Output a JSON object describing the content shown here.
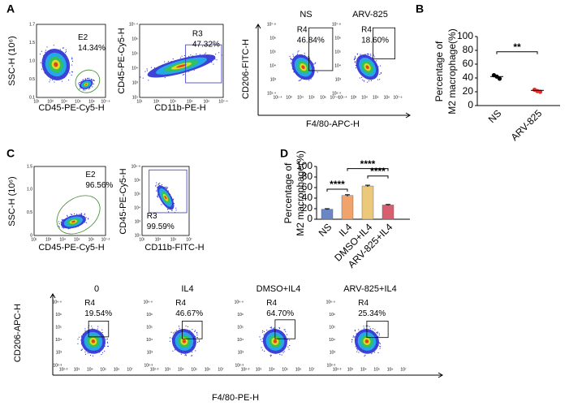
{
  "panel_labels": [
    "A",
    "B",
    "C",
    "D"
  ],
  "flow_plots": [
    {
      "y_label": "SSC-H (10⁶)",
      "x_label": "CD45-PE-Cy5-H",
      "gate_name": "E2",
      "gate_value": "14.34%",
      "y_ticks": [
        "0.1",
        "0.5",
        "1.0",
        "1.5",
        "1.7"
      ],
      "x_ticks": [
        "10¹",
        "10³",
        "10⁴",
        "10⁵",
        "10⁶",
        "10⁷·⁶"
      ]
    },
    {
      "y_label": "CD45-PE-Cy5-H",
      "x_label": "CD11b-PE-H",
      "gate_name": "R3",
      "gate_value": "47.32%",
      "y_ticks": [
        "10¹",
        "10³",
        "10⁴",
        "10⁵",
        "10⁶",
        "10⁷·⁴"
      ],
      "x_ticks": [
        "10¹",
        "10³",
        "10⁴",
        "10⁵",
        "10⁶",
        "10⁷·⁴"
      ]
    },
    {
      "y_label": "SSC-H (10⁶)",
      "x_label": "CD45-PE-Cy5-H",
      "gate_name": "E2",
      "gate_value": "96.56%",
      "y_ticks": [
        "0",
        "0.5",
        "1.0",
        "1.5"
      ],
      "x_ticks": [
        "10¹",
        "10³",
        "10⁴",
        "10⁵",
        "10⁶",
        "10⁷·²"
      ]
    },
    {
      "y_label": "CD45-PE-Cy5-H",
      "x_label": "CD11b-FITC-H",
      "gate_name": "R3",
      "gate_value": "99.59%",
      "y_ticks": [
        "10¹",
        "10³",
        "10⁴",
        "10⁵",
        "10⁶",
        "10⁶·⁸"
      ],
      "x_ticks": [
        "10¹",
        "10³",
        "10⁵",
        "10⁷"
      ]
    }
  ],
  "flow_groups": [
    {
      "y_label": "CD206-FITC-H",
      "x_label": "F4/80-APC-H",
      "plots": [
        {
          "title": "NS",
          "gate_name": "R4",
          "gate_value": "46.84%",
          "y_ticks": [
            "10¹·⁴",
            "10³",
            "10⁴",
            "10⁵",
            "10⁶",
            "10⁷·⁸"
          ],
          "x_ticks": [
            "10¹·⁴",
            "10³",
            "10⁴",
            "10⁵",
            "10⁶",
            "10⁷·⁶"
          ]
        },
        {
          "title": "ARV-825",
          "gate_name": "R4",
          "gate_value": "18.60%",
          "y_ticks": [
            "10¹·⁴",
            "10³",
            "10⁴",
            "10⁵",
            "10⁶",
            "10⁷·⁸"
          ],
          "x_ticks": [
            "10¹·⁴",
            "10³",
            "10⁴",
            "10⁵",
            "10⁶",
            "10⁷·⁶"
          ]
        }
      ]
    },
    {
      "y_label": "CD206-APC-H",
      "x_label": "F4/80-PE-H",
      "plots": [
        {
          "title": "0",
          "gate_name": "R4",
          "gate_value": "19.54%",
          "y_ticks": [
            "10²·³",
            "10³",
            "10⁴",
            "10⁵",
            "10⁶",
            "10⁶·⁹"
          ],
          "x_ticks": [
            "10²·³",
            "10³",
            "10⁴",
            "10⁵",
            "10⁶",
            "10⁷"
          ]
        },
        {
          "title": "IL4",
          "gate_name": "R4",
          "gate_value": "46.67%",
          "y_ticks": [
            "10²·³",
            "10³",
            "10⁴",
            "10⁵",
            "10⁶",
            "10⁶·⁹"
          ],
          "x_ticks": [
            "10²·³",
            "10³",
            "10⁴",
            "10⁵",
            "10⁶",
            "10⁷"
          ]
        },
        {
          "title": "DMSO+IL4",
          "gate_name": "R4",
          "gate_value": "64.70%",
          "y_ticks": [
            "10²·³",
            "10³",
            "10⁴",
            "10⁵",
            "10⁶",
            "10⁶·⁹"
          ],
          "x_ticks": [
            "10²·³",
            "10³",
            "10⁴",
            "10⁵",
            "10⁶",
            "10⁷"
          ]
        },
        {
          "title": "ARV-825+IL4",
          "gate_name": "R4",
          "gate_value": "25.34%",
          "y_ticks": [
            "10²·³",
            "10³",
            "10⁴",
            "10⁵",
            "10⁶",
            "10⁶·⁹"
          ],
          "x_ticks": [
            "10²·³",
            "10³",
            "10⁴",
            "10⁵",
            "10⁶",
            "10⁷"
          ]
        }
      ]
    }
  ],
  "chart_data": [
    {
      "type": "dot",
      "y_label": [
        "Percentage of",
        "M2 macrophage(%)"
      ],
      "categories": [
        "NS",
        "ARV-825"
      ],
      "values": [
        42,
        22
      ],
      "points": [
        [
          44,
          42,
          39
        ],
        [
          23,
          21,
          20
        ]
      ],
      "colors": [
        "#000000",
        "#e03030"
      ],
      "ylim": [
        0,
        100
      ],
      "yticks": [
        0,
        20,
        40,
        60,
        80,
        100
      ],
      "significance": [
        "**"
      ]
    },
    {
      "type": "bar",
      "y_label": [
        "Percentage of",
        "M2 macrophage(%)"
      ],
      "categories": [
        "NS",
        "IL4",
        "DMSO+IL4",
        "ARV-825+IL4"
      ],
      "values": [
        19,
        45,
        63,
        27
      ],
      "errors": [
        1,
        1.5,
        1.5,
        1
      ],
      "colors": [
        "#6a86c4",
        "#f0a46c",
        "#ecc97a",
        "#d85f70"
      ],
      "ylim": [
        0,
        100
      ],
      "yticks": [
        0,
        20,
        40,
        60,
        80,
        100
      ],
      "significance": [
        "****",
        "****",
        "****"
      ]
    }
  ]
}
